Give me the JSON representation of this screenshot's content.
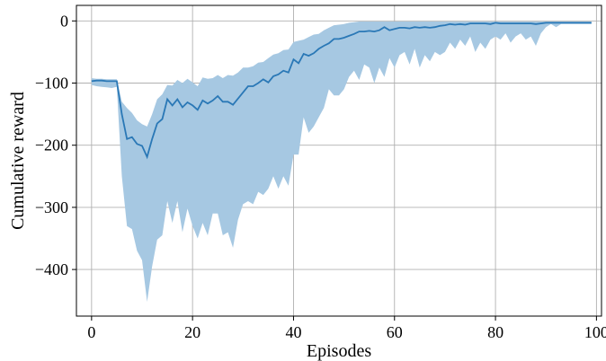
{
  "chart_data": {
    "type": "line",
    "title": "",
    "xlabel": "Episodes",
    "ylabel": "Cumulative reward",
    "xlim": [
      -3,
      101
    ],
    "ylim": [
      -475,
      25
    ],
    "x_ticks": [
      0,
      20,
      40,
      60,
      80,
      100
    ],
    "y_ticks": [
      0,
      -100,
      -200,
      -300,
      -400
    ],
    "x_tick_labels": [
      "0",
      "20",
      "40",
      "60",
      "80",
      "100"
    ],
    "y_tick_labels": [
      "0",
      "−100",
      "−200",
      "−300",
      "−400"
    ],
    "grid": true,
    "colors": {
      "line": "#2a78b6",
      "band": "#a6c8e2"
    },
    "series": [
      {
        "x": [
          0,
          1,
          2,
          3,
          4,
          5,
          6,
          7,
          8,
          9,
          10,
          11,
          12,
          13,
          14,
          15,
          16,
          17,
          18,
          19,
          20,
          21,
          22,
          23,
          24,
          25,
          26,
          27,
          28,
          29,
          30,
          31,
          32,
          33,
          34,
          35,
          36,
          37,
          38,
          39,
          40,
          41,
          42,
          43,
          44,
          45,
          46,
          47,
          48,
          49,
          50,
          51,
          52,
          53,
          54,
          55,
          56,
          57,
          58,
          59,
          60,
          61,
          62,
          63,
          64,
          65,
          66,
          67,
          68,
          69,
          70,
          71,
          72,
          73,
          74,
          75,
          76,
          77,
          78,
          79,
          80,
          81,
          82,
          83,
          84,
          85,
          86,
          87,
          88,
          89,
          90,
          91,
          92,
          93,
          94,
          95,
          96,
          97,
          98,
          99
        ],
        "mean": [
          -97,
          -96,
          -96,
          -97,
          -97,
          -97,
          -150,
          -190,
          -187,
          -198,
          -201,
          -219,
          -190,
          -165,
          -158,
          -126,
          -136,
          -126,
          -139,
          -131,
          -136,
          -143,
          -128,
          -133,
          -128,
          -121,
          -130,
          -130,
          -135,
          -125,
          -115,
          -105,
          -105,
          -100,
          -94,
          -99,
          -89,
          -86,
          -80,
          -83,
          -62,
          -68,
          -53,
          -56,
          -52,
          -45,
          -40,
          -36,
          -29,
          -29,
          -27,
          -24,
          -21,
          -17,
          -17,
          -16,
          -17,
          -15,
          -10,
          -15,
          -13,
          -11,
          -11,
          -12,
          -10,
          -11,
          -10,
          -11,
          -10,
          -8,
          -7,
          -5,
          -6,
          -5,
          -6,
          -4,
          -4,
          -4,
          -4,
          -5,
          -3,
          -4,
          -4,
          -4,
          -4,
          -4,
          -4,
          -4,
          -5,
          -4,
          -3,
          -3,
          -3,
          -3,
          -3,
          -3,
          -3,
          -3,
          -3,
          -3
        ],
        "upper": [
          -92,
          -93,
          -93,
          -94,
          -94,
          -94,
          -130,
          -140,
          -148,
          -160,
          -166,
          -170,
          -150,
          -126,
          -118,
          -103,
          -104,
          -95,
          -100,
          -93,
          -99,
          -105,
          -91,
          -93,
          -92,
          -87,
          -92,
          -87,
          -88,
          -83,
          -75,
          -75,
          -73,
          -67,
          -66,
          -60,
          -54,
          -52,
          -47,
          -46,
          -34,
          -32,
          -30,
          -26,
          -22,
          -21,
          -15,
          -11,
          -7,
          -6,
          -5,
          -3,
          -2,
          -1,
          -1,
          -1,
          -1,
          -1,
          -1,
          -1,
          -1,
          -1,
          -1,
          -1,
          -1,
          -1,
          -1,
          -1,
          -1,
          -1,
          -1,
          -1,
          -1,
          -1,
          -1,
          -1,
          -1,
          -1,
          -1,
          -1,
          -1,
          -1,
          -1,
          -1,
          -1,
          -1,
          -1,
          -1,
          -1,
          -1,
          -1,
          -1,
          -1,
          -1,
          -1,
          -1,
          -1,
          -1,
          -1,
          -1
        ],
        "lower": [
          -103,
          -105,
          -106,
          -107,
          -108,
          -106,
          -250,
          -330,
          -335,
          -370,
          -385,
          -452,
          -395,
          -352,
          -345,
          -290,
          -325,
          -290,
          -340,
          -302,
          -330,
          -350,
          -325,
          -345,
          -310,
          -310,
          -345,
          -340,
          -365,
          -320,
          -295,
          -290,
          -295,
          -275,
          -280,
          -270,
          -250,
          -270,
          -250,
          -265,
          -215,
          -215,
          -155,
          -180,
          -170,
          -155,
          -140,
          -110,
          -120,
          -120,
          -110,
          -90,
          -80,
          -95,
          -70,
          -75,
          -100,
          -75,
          -90,
          -60,
          -75,
          -55,
          -50,
          -70,
          -45,
          -75,
          -55,
          -65,
          -50,
          -55,
          -50,
          -35,
          -45,
          -30,
          -40,
          -25,
          -50,
          -35,
          -45,
          -30,
          -25,
          -30,
          -20,
          -35,
          -25,
          -20,
          -30,
          -25,
          -40,
          -20,
          -10,
          -5,
          -10,
          -5,
          -5,
          -5,
          -5,
          -5,
          -5,
          -5
        ]
      }
    ]
  }
}
